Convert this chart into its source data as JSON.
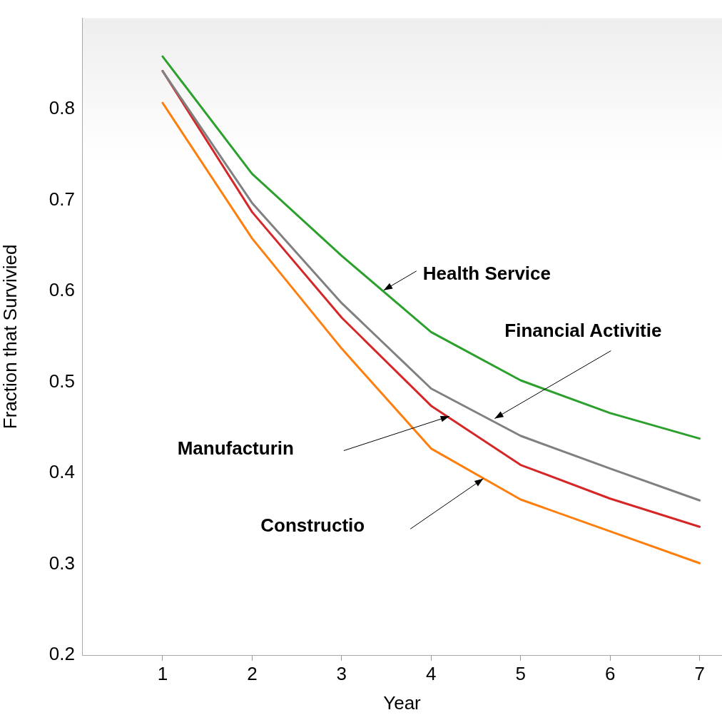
{
  "chart_data": {
    "type": "line",
    "xlabel": "Year",
    "ylabel": "Fraction that Survivied",
    "x": [
      1,
      2,
      3,
      4,
      5,
      6,
      7
    ],
    "series": [
      {
        "color": "#2ca02c",
        "values": [
          0.858,
          0.729,
          0.639,
          0.555,
          0.502,
          0.466,
          0.438
        ]
      },
      {
        "color": "#808080",
        "values": [
          0.842,
          0.697,
          0.587,
          0.493,
          0.441,
          0.405,
          0.37
        ]
      },
      {
        "color": "#d62728",
        "values": [
          0.842,
          0.687,
          0.571,
          0.474,
          0.409,
          0.372,
          0.341
        ]
      },
      {
        "color": "#ff7f0e",
        "values": [
          0.807,
          0.658,
          0.537,
          0.427,
          0.371,
          0.336,
          0.301
        ]
      }
    ],
    "annotations": [
      {
        "text": "Health Service",
        "x": 3.47,
        "y": 0.601
      },
      {
        "text": "Financial Activitie",
        "x": 4.71,
        "y": 0.46
      },
      "Manufacturin",
      "Constructio"
    ],
    "xlim": [
      0.1,
      7.25
    ],
    "ylim": [
      0.2,
      0.9
    ],
    "xticks": [
      1,
      2,
      3,
      4,
      5,
      6,
      7
    ],
    "yticks": [
      0.2,
      0.3,
      0.4,
      0.5,
      0.6,
      0.7,
      0.8
    ],
    "grid": false,
    "legend": false,
    "marker": "none",
    "line_style": "solid"
  }
}
